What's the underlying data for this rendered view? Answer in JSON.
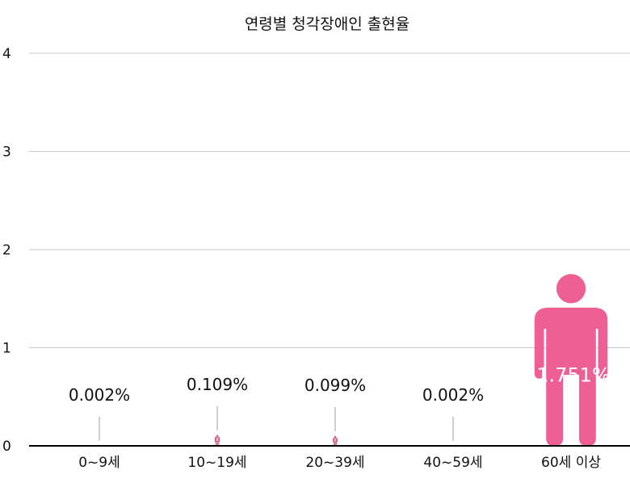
{
  "chart_data": {
    "type": "bar",
    "title": "연령별 청각장애인 출현율",
    "categories": [
      "0~9세",
      "10~19세",
      "20~39세",
      "40~59세",
      "60세 이상"
    ],
    "values": [
      0.002,
      0.109,
      0.099,
      0.002,
      1.751
    ],
    "value_labels": [
      "0.002%",
      "0.109%",
      "0.099%",
      "0.002%",
      "1.751%"
    ],
    "yticks": [
      "0",
      "1",
      "2",
      "3",
      "4"
    ],
    "ylim": [
      0,
      4
    ],
    "mark": "person-pictogram",
    "bar_color": "#ee5f93",
    "grid": true
  }
}
